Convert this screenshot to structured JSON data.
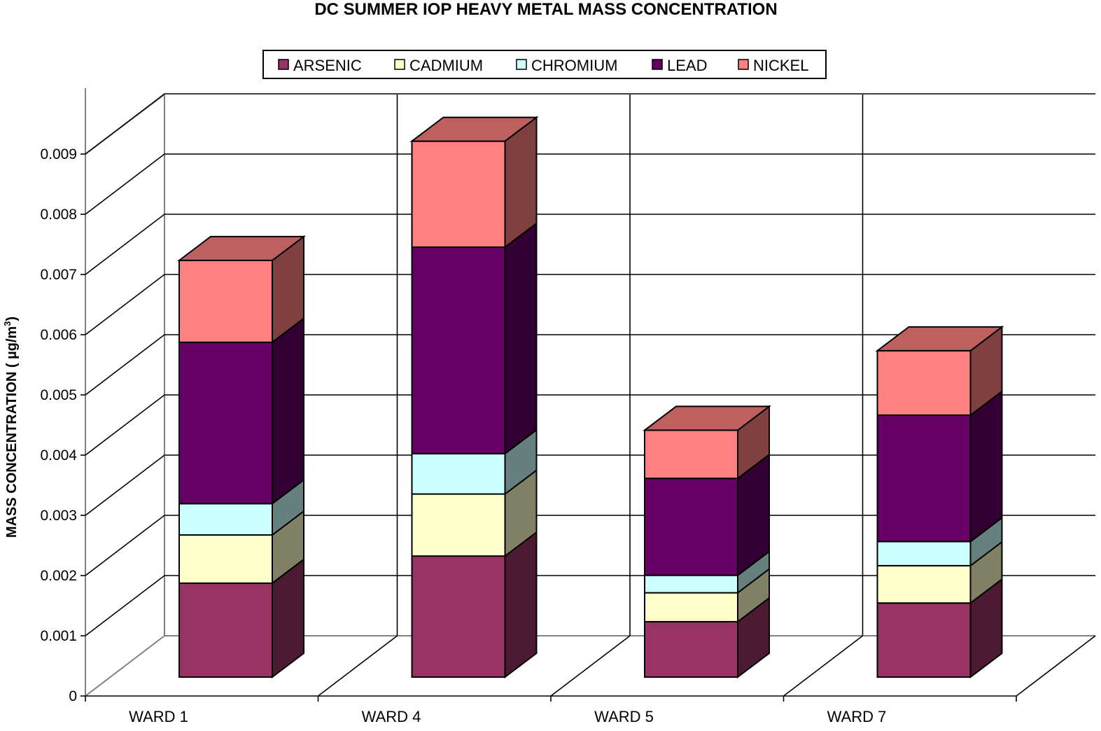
{
  "chart_data": {
    "type": "bar",
    "stacked": true,
    "three_d": true,
    "title": "DC SUMMER IOP HEAVY METAL MASS CONCENTRATION",
    "xlabel": "",
    "ylabel": "MASS CONCENTRATION (  µg/m",
    "ylabel_superscript": "3",
    "ylabel_suffix": ")",
    "ylim": [
      0,
      0.009
    ],
    "yticks": [
      "0",
      "0.001",
      "0.002",
      "0.003",
      "0.004",
      "0.005",
      "0.006",
      "0.007",
      "0.008",
      "0.009"
    ],
    "grid": true,
    "legend_position": "top-center",
    "categories": [
      "WARD 1",
      "WARD 4",
      "WARD 5",
      "WARD 7"
    ],
    "series": [
      {
        "name": "ARSENIC",
        "color": "#993366",
        "values": [
          0.00156,
          0.00201,
          0.00092,
          0.00123
        ]
      },
      {
        "name": "CADMIUM",
        "color": "#FFFFCC",
        "values": [
          0.0008,
          0.00103,
          0.00048,
          0.00062
        ]
      },
      {
        "name": "CHROMIUM",
        "color": "#CCFFFF",
        "values": [
          0.00052,
          0.00067,
          0.00029,
          0.0004
        ]
      },
      {
        "name": "LEAD",
        "color": "#660066",
        "values": [
          0.00268,
          0.00343,
          0.00161,
          0.0021
        ]
      },
      {
        "name": "NICKEL",
        "color": "#FF8080",
        "values": [
          0.00136,
          0.00176,
          0.0008,
          0.00107
        ]
      }
    ]
  }
}
